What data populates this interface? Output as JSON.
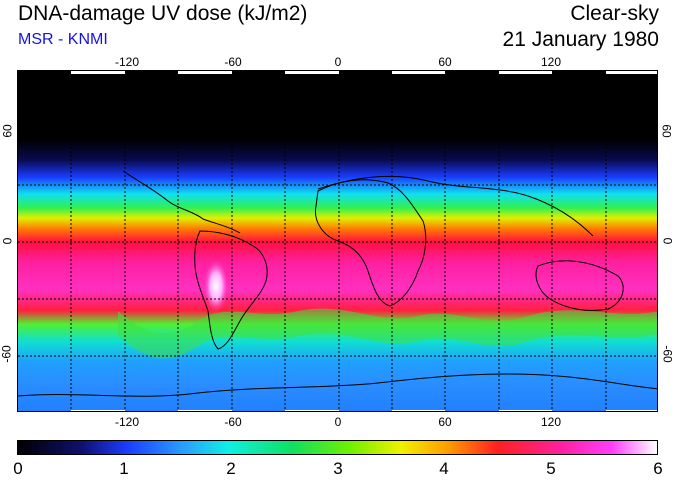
{
  "header": {
    "title": "DNA-damage UV dose (kJ/m2)",
    "subtitle": "MSR - KNMI",
    "mode": "Clear-sky",
    "date": "21 January 1980"
  },
  "map": {
    "lon_labels": [
      "-120",
      "-60",
      "0",
      "60",
      "120"
    ],
    "lat_labels_left": [
      "60",
      "0",
      "-60"
    ],
    "lat_labels_right": [
      "60",
      "0",
      "-60"
    ],
    "lon_range": [
      -180,
      180
    ],
    "lat_range": [
      -90,
      90
    ]
  },
  "colorbar": {
    "labels": [
      "0",
      "1",
      "2",
      "3",
      "4",
      "5",
      "6"
    ],
    "range": [
      0,
      6
    ]
  },
  "colors": {
    "subtitle": "#1414e0",
    "coast": "#000000"
  }
}
